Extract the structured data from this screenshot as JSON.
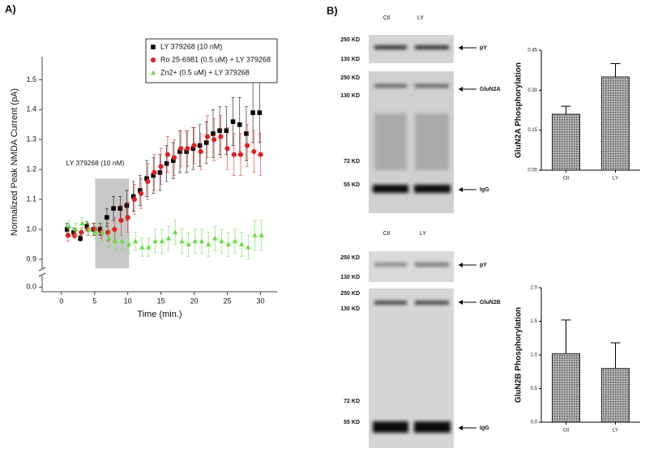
{
  "panel_labels": [
    "A)",
    "B)"
  ],
  "chart_data": [
    {
      "type": "scatter",
      "x": [
        1,
        2,
        3,
        4,
        5,
        6,
        7,
        8,
        9,
        10,
        11,
        12,
        13,
        14,
        15,
        16,
        17,
        18,
        19,
        20,
        21,
        22,
        23,
        24,
        25,
        26,
        27,
        28,
        29,
        30
      ],
      "xlabel": "Time (min.)",
      "ylabel": "Normalized Peak NMDA Current (pA)",
      "xlim": [
        -2.9,
        32.5
      ],
      "xticks": [
        0,
        5,
        10,
        15,
        20,
        25,
        30
      ],
      "ylim": [
        -0.02,
        1.55
      ],
      "ybreak": [
        0.05,
        0.87
      ],
      "yticks": [
        {
          "value": 0,
          "label": "0.0"
        },
        0.9,
        {
          "value": 1,
          "label": "1.0"
        },
        1.1,
        1.2,
        1.3,
        1.4,
        1.5
      ],
      "annotation": "LY 379268 (10 nM)",
      "shaded_region": {
        "x": [
          5.1,
          10.2
        ],
        "y": [
          0.87,
          1.17
        ],
        "color": "#c8c8c8"
      },
      "legend": "top-right",
      "series": [
        {
          "name": "LY 379268 (10 nM)",
          "color": "#000000",
          "marker": "square",
          "values": [
            1.0,
            0.99,
            0.97,
            1.01,
            1.0,
            1.0,
            1.04,
            1.07,
            1.07,
            1.08,
            1.11,
            1.13,
            1.17,
            1.18,
            1.19,
            1.22,
            1.23,
            1.26,
            1.26,
            1.27,
            1.28,
            1.29,
            1.32,
            1.33,
            1.33,
            1.36,
            1.35,
            1.32,
            1.39,
            1.39
          ],
          "errors": [
            0.02,
            0.015,
            0.01,
            0.015,
            0.02,
            0.02,
            0.03,
            0.04,
            0.04,
            0.05,
            0.05,
            0.05,
            0.06,
            0.06,
            0.06,
            0.06,
            0.06,
            0.07,
            0.07,
            0.07,
            0.07,
            0.07,
            0.08,
            0.08,
            0.08,
            0.08,
            0.09,
            0.09,
            0.1,
            0.1
          ]
        },
        {
          "name": "Ro 25-6981 (0.5 uM) + LY 379268",
          "color": "#e02020",
          "marker": "circle",
          "values": [
            0.98,
            0.98,
            0.99,
            1.0,
            1.0,
            0.99,
            0.99,
            1.0,
            1.03,
            1.04,
            1.1,
            1.12,
            1.16,
            1.19,
            1.21,
            1.25,
            1.24,
            1.27,
            1.27,
            1.28,
            1.26,
            1.31,
            1.3,
            1.31,
            1.27,
            1.25,
            1.25,
            1.28,
            1.26,
            1.25
          ],
          "errors": [
            0.02,
            0.01,
            0.015,
            0.02,
            0.02,
            0.02,
            0.03,
            0.04,
            0.05,
            0.05,
            0.05,
            0.05,
            0.06,
            0.06,
            0.06,
            0.06,
            0.06,
            0.06,
            0.06,
            0.06,
            0.06,
            0.07,
            0.07,
            0.07,
            0.07,
            0.07,
            0.07,
            0.07,
            0.07,
            0.07
          ]
        },
        {
          "name": "Zn2+ (0.5 uM) + LY 379268",
          "color": "#66dd44",
          "marker": "triangle",
          "values": [
            1.01,
            1.0,
            1.02,
            1.0,
            0.99,
            0.99,
            0.97,
            0.96,
            0.96,
            0.95,
            0.96,
            0.94,
            0.94,
            0.96,
            0.96,
            0.97,
            0.99,
            0.96,
            0.95,
            0.96,
            0.96,
            0.95,
            0.97,
            0.96,
            0.95,
            0.96,
            0.95,
            0.94,
            0.98,
            0.98
          ],
          "errors": [
            0.02,
            0.02,
            0.02,
            0.02,
            0.02,
            0.03,
            0.03,
            0.03,
            0.03,
            0.03,
            0.03,
            0.03,
            0.03,
            0.04,
            0.04,
            0.04,
            0.04,
            0.04,
            0.04,
            0.04,
            0.04,
            0.04,
            0.04,
            0.04,
            0.04,
            0.04,
            0.04,
            0.04,
            0.05,
            0.05
          ]
        }
      ]
    },
    {
      "type": "bar",
      "ylabel": "GluN2A Phosphorylation",
      "categories": [
        "Ctl",
        "LY"
      ],
      "values": [
        0.21,
        0.35
      ],
      "errors": [
        0.03,
        0.05
      ],
      "color": "#7a7a7a",
      "ylim": [
        0,
        0.45
      ],
      "yticks": [
        {
          "value": 0,
          "label": "0.00"
        },
        0.15,
        {
          "value": 0.3,
          "label": "0.30"
        },
        0.45
      ]
    },
    {
      "type": "bar",
      "ylabel": "GluN2B Phosphorylation",
      "categories": [
        "Ctl",
        "LY"
      ],
      "values": [
        1.02,
        0.8
      ],
      "errors": [
        0.5,
        0.38
      ],
      "color": "#7a7a7a",
      "ylim": [
        0,
        2.0
      ],
      "yticks": [
        {
          "value": 0,
          "label": "0.0"
        },
        0.5,
        {
          "value": 1,
          "label": "1.0"
        },
        1.5,
        {
          "value": 2,
          "label": "2.0"
        }
      ]
    }
  ],
  "blots": [
    {
      "lanes": [
        "Ctl",
        "LY"
      ],
      "panels": [
        {
          "markers": [
            "250 KD",
            "130 KD"
          ],
          "bands": [
            "pY"
          ]
        },
        {
          "markers": [
            "250 KD",
            "130 KD",
            "72 KD",
            "55 KD"
          ],
          "bands": [
            "GluN2A",
            "IgG"
          ]
        }
      ]
    },
    {
      "lanes": [
        "Ctl",
        "LY"
      ],
      "panels": [
        {
          "markers": [
            "250 KD",
            "130 KD"
          ],
          "bands": [
            "pY"
          ]
        },
        {
          "markers": [
            "250 KD",
            "130 KD",
            "72 KD",
            "55 KD"
          ],
          "bands": [
            "GluN2B",
            "IgG"
          ]
        }
      ]
    }
  ]
}
